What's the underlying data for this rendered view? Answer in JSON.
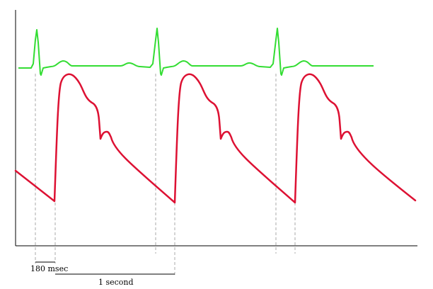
{
  "diagram": {
    "colors": {
      "ecg": "#33dd33",
      "pressure": "#dd1133",
      "axis": "#000000",
      "guide": "#aaaaaa"
    },
    "annotations": {
      "interval_short": "180 msec",
      "interval_long": "1 second"
    }
  }
}
